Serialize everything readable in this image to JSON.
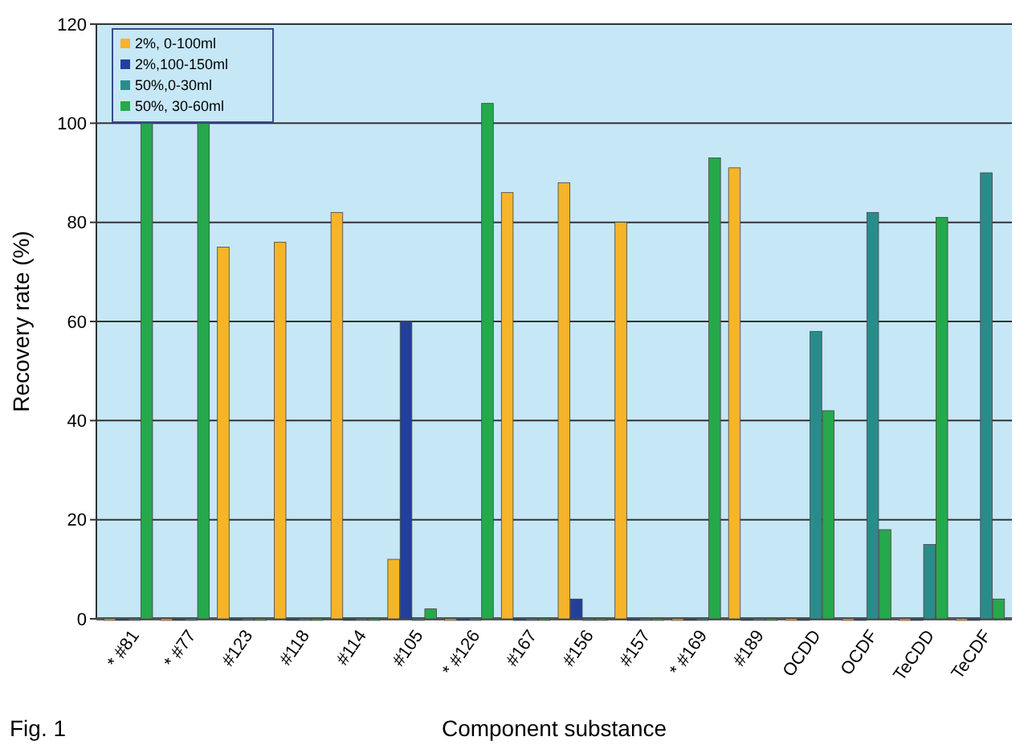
{
  "chart_data": {
    "type": "bar",
    "xlabel": "Component substance",
    "ylabel": "Recovery rate (%)",
    "annotations": [
      "Fig. 1"
    ],
    "categories": [
      "* #81",
      "* #77",
      "#123",
      "#118",
      "#114",
      "#105",
      "* #126",
      "#167",
      "#156",
      "#157",
      "* #169",
      "#189",
      "OCDD",
      "OCDF",
      "TeCDD",
      "TeCDF"
    ],
    "series": [
      {
        "name": "2%, 0-100ml",
        "color": "#f5b42a",
        "values": [
          0,
          0,
          75,
          76,
          82,
          12,
          0,
          86,
          88,
          80,
          0,
          91,
          0,
          0,
          0,
          0
        ]
      },
      {
        "name": "2%,100-150ml",
        "color": "#22409a",
        "values": [
          0,
          0,
          0,
          0,
          0,
          60,
          0,
          0,
          4,
          0,
          0,
          0,
          0,
          0,
          0,
          0
        ]
      },
      {
        "name": "50%,0-30ml",
        "color": "#2a8c8a",
        "values": [
          0,
          0,
          0,
          0,
          0,
          0,
          0,
          0,
          0,
          0,
          0,
          0,
          58,
          82,
          15,
          90
        ]
      },
      {
        "name": "50%, 30-60ml",
        "color": "#26a84c",
        "values": [
          100,
          100,
          0,
          0,
          0,
          2,
          104,
          0,
          0,
          0,
          93,
          0,
          42,
          18,
          81,
          4
        ]
      }
    ],
    "ylim": [
      0,
      120
    ],
    "yticks": [
      0,
      20,
      40,
      60,
      80,
      100,
      120
    ],
    "grid": "y",
    "legend": "top left"
  }
}
